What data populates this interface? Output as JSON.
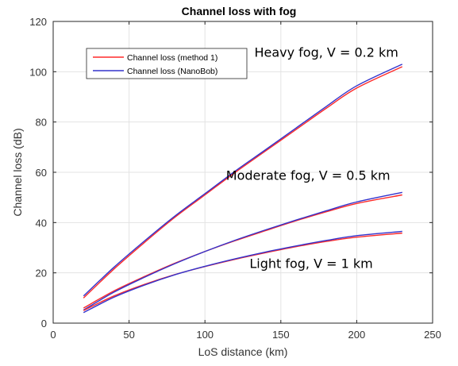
{
  "chart_data": {
    "type": "line",
    "title": "Channel loss with fog",
    "xlabel": "LoS distance (km)",
    "ylabel": "Channel loss (dB)",
    "xlim": [
      0,
      250
    ],
    "ylim": [
      0,
      120
    ],
    "xticks": [
      0,
      50,
      100,
      150,
      200,
      250
    ],
    "yticks": [
      0,
      20,
      40,
      60,
      80,
      100,
      120
    ],
    "grid": true,
    "legend_position": "top-left",
    "legend": [
      {
        "label": "Channel loss (method 1)",
        "color": "#ff2a2a"
      },
      {
        "label": "Channel loss (NanoBob)",
        "color": "#3333cc"
      }
    ],
    "annotations": [
      {
        "text": "Heavy fog, V = 0.2 km",
        "x": 180,
        "y": 106
      },
      {
        "text": "Moderate fog, V = 0.5 km",
        "x": 168,
        "y": 57
      },
      {
        "text": "Light fog, V = 1 km",
        "x": 170,
        "y": 22
      }
    ],
    "x": [
      20,
      40,
      60,
      80,
      100,
      120,
      140,
      160,
      180,
      200,
      230
    ],
    "series": [
      {
        "name": "Channel loss (method 1)",
        "group": "Heavy fog",
        "color": "#ff2a2a",
        "values": [
          10.0,
          21.5,
          32.0,
          42.0,
          51.0,
          60.0,
          68.5,
          77.0,
          85.5,
          93.5,
          102.0
        ]
      },
      {
        "name": "Channel loss (NanoBob)",
        "group": "Heavy fog",
        "color": "#3333cc",
        "values": [
          10.8,
          22.2,
          32.6,
          42.5,
          51.5,
          60.5,
          69.0,
          77.6,
          86.2,
          94.4,
          103.0
        ]
      },
      {
        "name": "Channel loss (method 1)",
        "group": "Moderate fog",
        "color": "#ff2a2a",
        "values": [
          6.0,
          12.8,
          18.5,
          23.8,
          28.5,
          32.8,
          36.8,
          40.7,
          44.3,
          47.6,
          51.0
        ]
      },
      {
        "name": "Channel loss (NanoBob)",
        "group": "Moderate fog",
        "color": "#3333cc",
        "values": [
          5.2,
          12.3,
          18.2,
          23.6,
          28.5,
          33.0,
          37.1,
          41.0,
          44.7,
          48.2,
          52.0
        ]
      },
      {
        "name": "Channel loss (method 1)",
        "group": "Light fog",
        "color": "#ff2a2a",
        "values": [
          5.0,
          10.8,
          15.4,
          19.3,
          22.5,
          25.4,
          28.0,
          30.4,
          32.5,
          34.2,
          35.8
        ]
      },
      {
        "name": "Channel loss (NanoBob)",
        "group": "Light fog",
        "color": "#3333cc",
        "values": [
          4.2,
          10.3,
          15.1,
          19.2,
          22.6,
          25.6,
          28.3,
          30.7,
          32.9,
          34.8,
          36.5
        ]
      }
    ]
  }
}
